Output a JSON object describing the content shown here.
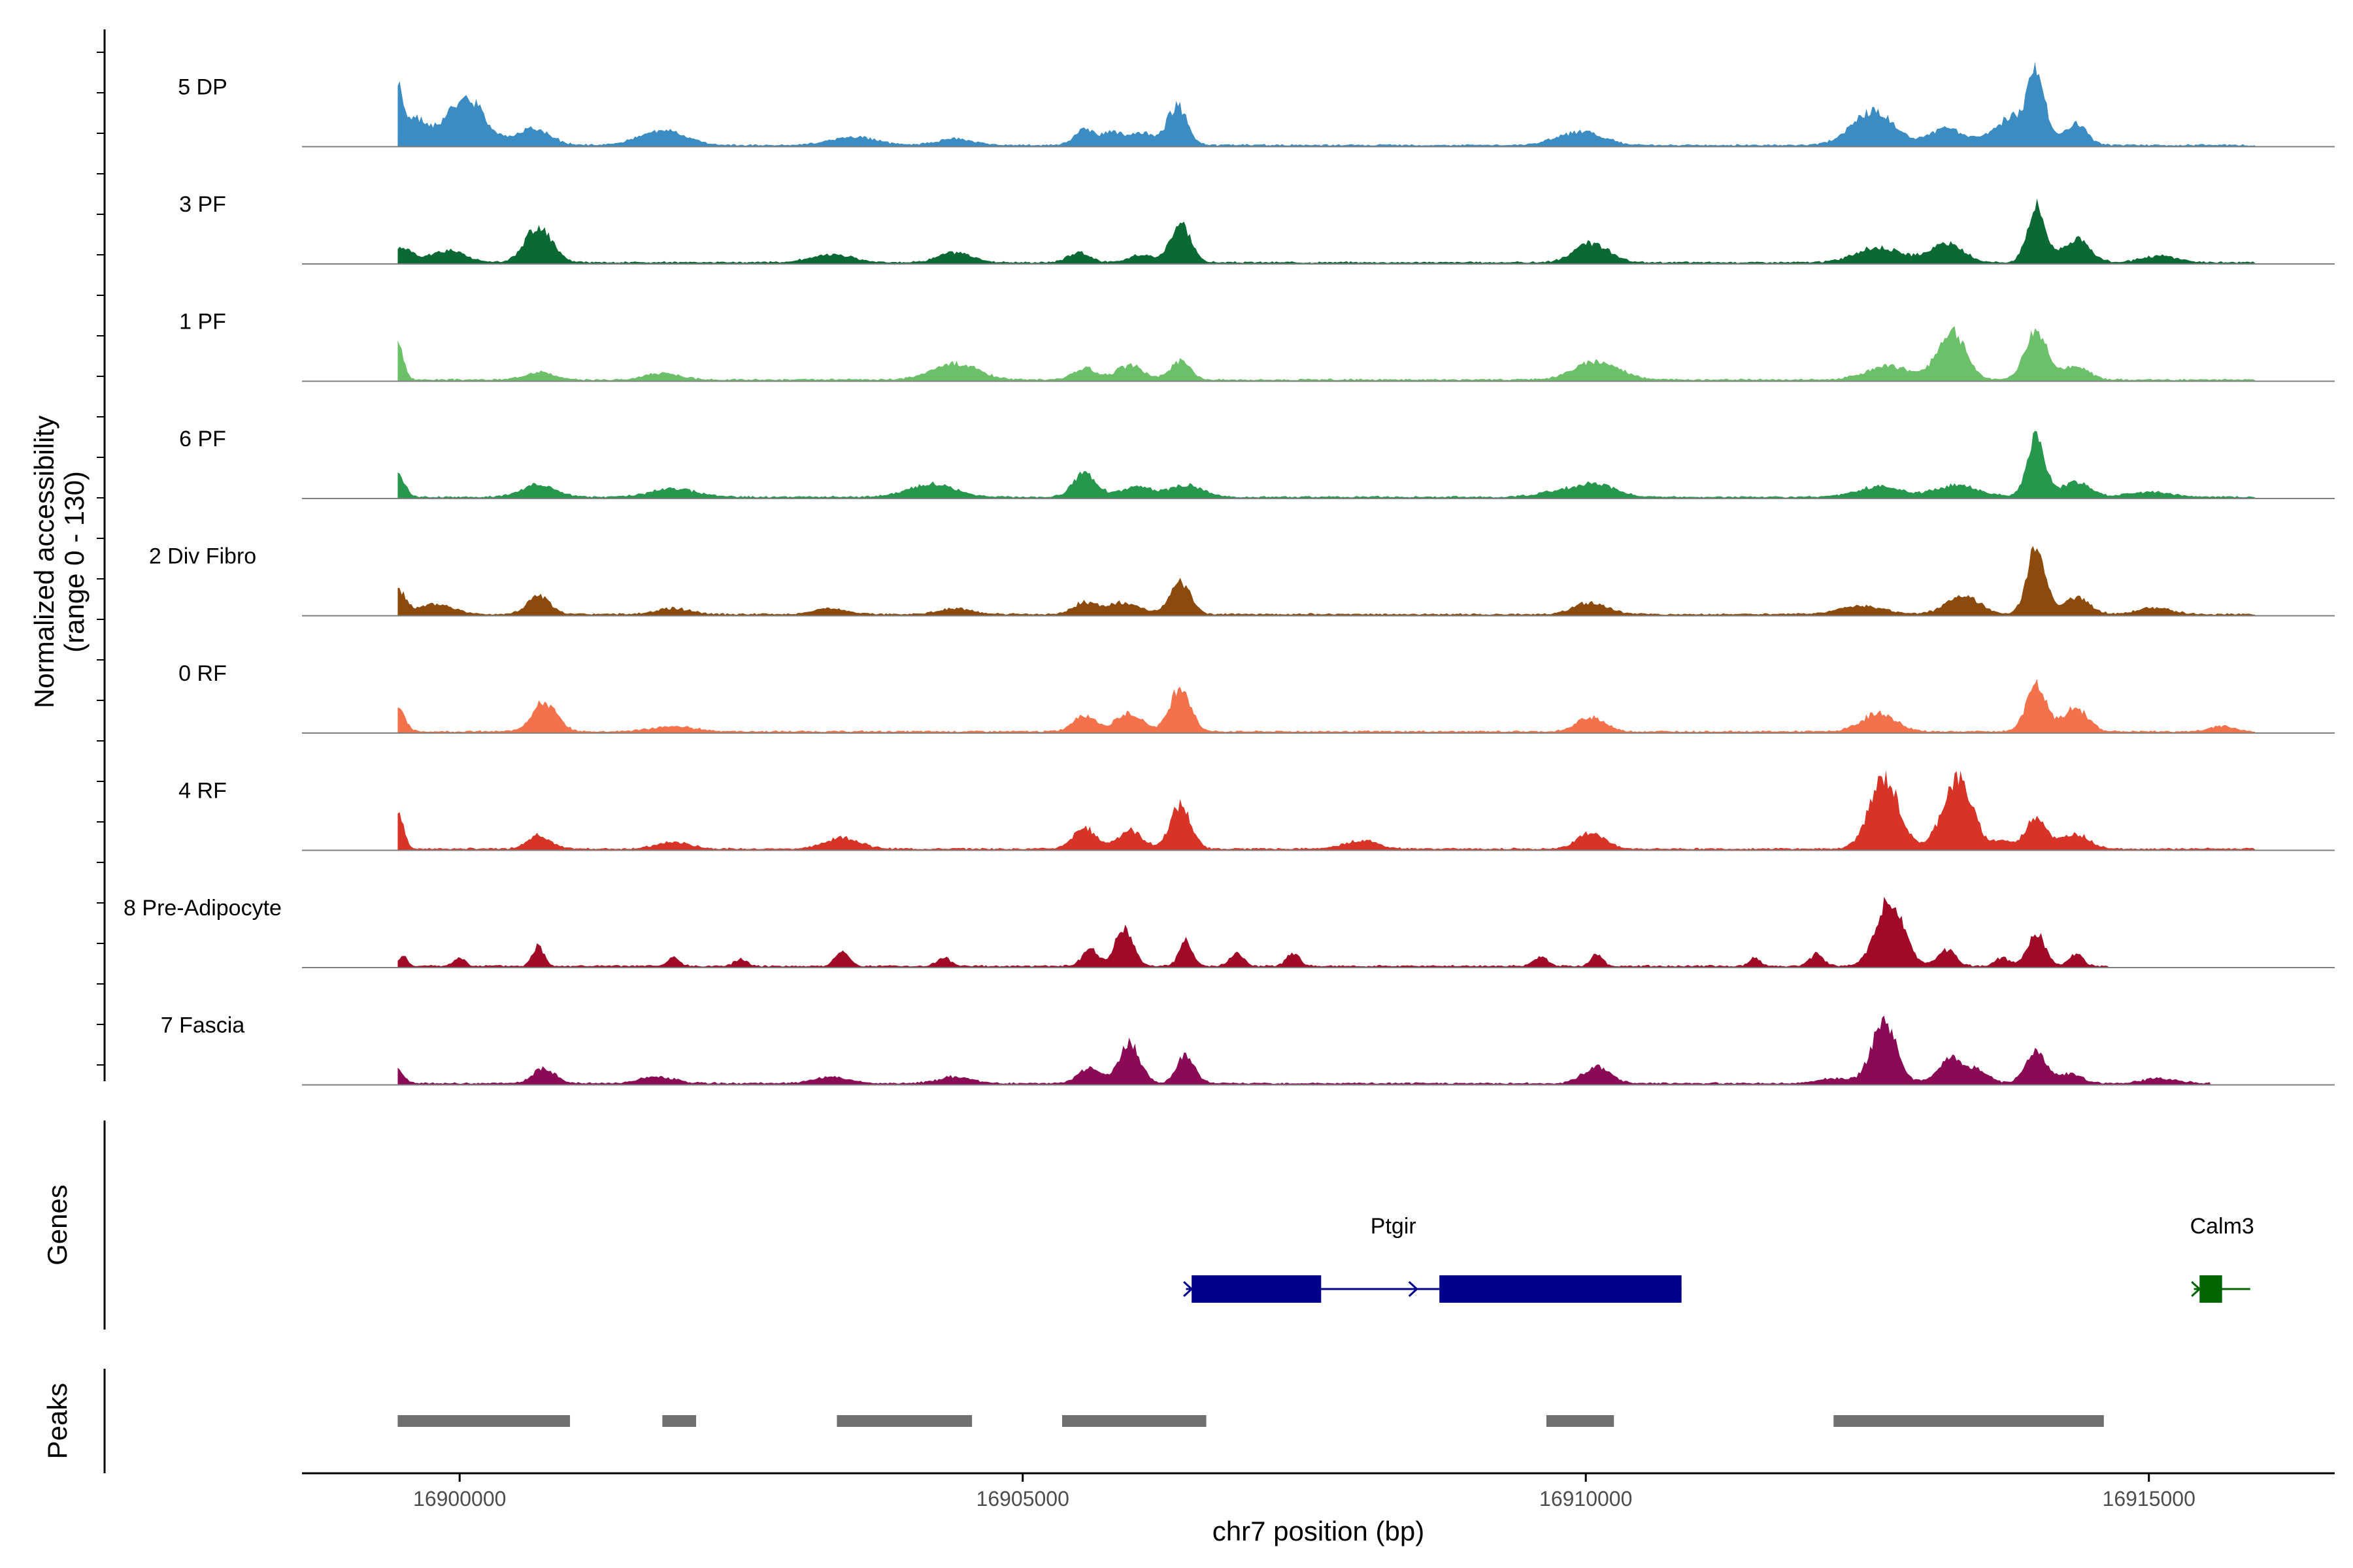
{
  "chart_data": {
    "type": "area",
    "title": "",
    "ylabel_line1": "Normalized accessibility",
    "ylabel_line2": "(range 0 - 130)",
    "y_range": [
      0,
      130
    ],
    "xlabel": "chr7 position (bp)",
    "chromosome": "chr7",
    "xlim": [
      16898600,
      16916650
    ],
    "xticks": [
      16900000,
      16905000,
      16910000,
      16915000
    ],
    "xtick_labels": [
      "16900000",
      "16905000",
      "16910000",
      "16915000"
    ],
    "track_start": 16899450,
    "track_end": 16915950,
    "tracks": [
      {
        "name": "5 DP",
        "color": "#3a8cc3",
        "end": 16915950,
        "peaks": [
          [
            16899450,
            50,
            30
          ],
          [
            16899550,
            35,
            120
          ],
          [
            16900100,
            45,
            150
          ],
          [
            16899900,
            20,
            150
          ],
          [
            16900650,
            20,
            150
          ],
          [
            16901800,
            18,
            200
          ],
          [
            16903500,
            10,
            200
          ],
          [
            16904400,
            8,
            150
          ],
          [
            16905550,
            18,
            90
          ],
          [
            16905800,
            16,
            90
          ],
          [
            16906050,
            16,
            90
          ],
          [
            16906370,
            47,
            90
          ],
          [
            16909950,
            16,
            200
          ],
          [
            16912550,
            40,
            190
          ],
          [
            16913200,
            20,
            150
          ],
          [
            16913700,
            20,
            150
          ],
          [
            16914000,
            85,
            80
          ],
          [
            16914350,
            25,
            100
          ],
          [
            16913800,
            15,
            90
          ]
        ]
      },
      {
        "name": "3 PF",
        "color": "#0b6a34",
        "end": 16915950,
        "peaks": [
          [
            16899450,
            18,
            120
          ],
          [
            16899900,
            15,
            150
          ],
          [
            16900700,
            42,
            120
          ],
          [
            16903300,
            10,
            180
          ],
          [
            16904400,
            12,
            150
          ],
          [
            16905500,
            12,
            100
          ],
          [
            16906050,
            10,
            100
          ],
          [
            16906400,
            48,
            90
          ],
          [
            16910050,
            23,
            150
          ],
          [
            16912600,
            18,
            200
          ],
          [
            16913200,
            22,
            150
          ],
          [
            16914000,
            68,
            80
          ],
          [
            16914350,
            28,
            120
          ],
          [
            16915100,
            8,
            150
          ]
        ]
      },
      {
        "name": "1 PF",
        "color": "#6cc069",
        "end": 16915950,
        "peaks": [
          [
            16899450,
            42,
            50
          ],
          [
            16900700,
            10,
            120
          ],
          [
            16901800,
            8,
            150
          ],
          [
            16904400,
            20,
            200
          ],
          [
            16905550,
            14,
            100
          ],
          [
            16905950,
            17,
            120
          ],
          [
            16906400,
            22,
            90
          ],
          [
            16910100,
            22,
            200
          ],
          [
            16912700,
            16,
            200
          ],
          [
            16913250,
            60,
            120
          ],
          [
            16914000,
            60,
            100
          ],
          [
            16914350,
            15,
            120
          ]
        ]
      },
      {
        "name": "6 PF",
        "color": "#27974e",
        "end": 16915950,
        "peaks": [
          [
            16899450,
            28,
            60
          ],
          [
            16900700,
            15,
            150
          ],
          [
            16901900,
            10,
            200
          ],
          [
            16904200,
            16,
            200
          ],
          [
            16905550,
            30,
            100
          ],
          [
            16906000,
            12,
            150
          ],
          [
            16906450,
            14,
            150
          ],
          [
            16909850,
            10,
            200
          ],
          [
            16910150,
            12,
            150
          ],
          [
            16912600,
            12,
            200
          ],
          [
            16913300,
            14,
            200
          ],
          [
            16914000,
            70,
            80
          ],
          [
            16914350,
            18,
            120
          ],
          [
            16915000,
            6,
            200
          ]
        ]
      },
      {
        "name": "2 Div Fibro",
        "color": "#8c4b0c",
        "end": 16915950,
        "peaks": [
          [
            16899450,
            30,
            70
          ],
          [
            16899800,
            12,
            150
          ],
          [
            16900700,
            22,
            100
          ],
          [
            16901900,
            7,
            150
          ],
          [
            16903300,
            7,
            150
          ],
          [
            16904400,
            7,
            150
          ],
          [
            16905550,
            14,
            100
          ],
          [
            16905900,
            14,
            150
          ],
          [
            16906400,
            38,
            90
          ],
          [
            16910050,
            14,
            150
          ],
          [
            16912450,
            10,
            200
          ],
          [
            16913350,
            22,
            150
          ],
          [
            16914000,
            80,
            80
          ],
          [
            16914350,
            20,
            120
          ],
          [
            16915050,
            8,
            150
          ]
        ]
      },
      {
        "name": "0 RF",
        "color": "#f3724b",
        "end": 16915950,
        "peaks": [
          [
            16899450,
            30,
            60
          ],
          [
            16900750,
            35,
            110
          ],
          [
            16901900,
            6,
            200
          ],
          [
            16905550,
            20,
            100
          ],
          [
            16905950,
            22,
            120
          ],
          [
            16906400,
            55,
            90
          ],
          [
            16910050,
            18,
            120
          ],
          [
            16912600,
            22,
            150
          ],
          [
            16914000,
            55,
            90
          ],
          [
            16914350,
            28,
            110
          ],
          [
            16915650,
            7,
            100
          ]
        ]
      },
      {
        "name": "4 RF",
        "color": "#d83327",
        "end": 16915950,
        "peaks": [
          [
            16899450,
            48,
            50
          ],
          [
            16900700,
            17,
            100
          ],
          [
            16901900,
            8,
            150
          ],
          [
            16903400,
            14,
            150
          ],
          [
            16905550,
            25,
            100
          ],
          [
            16905950,
            22,
            110
          ],
          [
            16906400,
            53,
            90
          ],
          [
            16908000,
            10,
            150
          ],
          [
            16910050,
            20,
            120
          ],
          [
            16912650,
            85,
            130
          ],
          [
            16913300,
            85,
            130
          ],
          [
            16914000,
            40,
            90
          ],
          [
            16914350,
            18,
            120
          ],
          [
            16913700,
            10,
            80
          ]
        ]
      },
      {
        "name": "8 Pre-Adipocyte",
        "color": "#a10a27",
        "end": 16914650,
        "peaks": [
          [
            16899500,
            12,
            40
          ],
          [
            16900000,
            10,
            50
          ],
          [
            16900700,
            25,
            50
          ],
          [
            16901900,
            10,
            50
          ],
          [
            16902500,
            8,
            60
          ],
          [
            16903400,
            18,
            60
          ],
          [
            16904300,
            10,
            60
          ],
          [
            16905600,
            20,
            70
          ],
          [
            16905900,
            45,
            80
          ],
          [
            16906450,
            30,
            60
          ],
          [
            16906900,
            15,
            60
          ],
          [
            16907400,
            15,
            60
          ],
          [
            16909600,
            12,
            60
          ],
          [
            16910100,
            15,
            50
          ],
          [
            16911500,
            10,
            50
          ],
          [
            16912050,
            15,
            60
          ],
          [
            16912700,
            80,
            120
          ],
          [
            16913200,
            20,
            80
          ],
          [
            16913700,
            10,
            60
          ],
          [
            16914000,
            40,
            80
          ],
          [
            16914350,
            15,
            60
          ]
        ]
      },
      {
        "name": "7 Fascia",
        "color": "#8a0a55",
        "end": 16915550,
        "peaks": [
          [
            16899450,
            18,
            50
          ],
          [
            16900750,
            18,
            100
          ],
          [
            16901750,
            8,
            150
          ],
          [
            16903300,
            8,
            150
          ],
          [
            16904400,
            8,
            150
          ],
          [
            16905600,
            20,
            100
          ],
          [
            16905950,
            50,
            90
          ],
          [
            16906450,
            35,
            80
          ],
          [
            16910100,
            20,
            120
          ],
          [
            16912200,
            6,
            150
          ],
          [
            16912650,
            75,
            110
          ],
          [
            16913250,
            30,
            120
          ],
          [
            16913500,
            12,
            100
          ],
          [
            16914000,
            40,
            90
          ],
          [
            16914300,
            12,
            100
          ],
          [
            16915100,
            6,
            150
          ]
        ]
      }
    ],
    "genes": [
      {
        "name": "Ptgir",
        "strand": "+",
        "color": "#00008b",
        "start": 16906450,
        "end": 16910850,
        "exons": [
          [
            16906500,
            16907650
          ],
          [
            16908700,
            16910850
          ]
        ],
        "arrows_at": [
          16906500,
          16908500
        ]
      },
      {
        "name": "Calm3",
        "strand": "+",
        "color": "#006400",
        "start": 16915400,
        "end": 16915900,
        "exons": [
          [
            16915450,
            16915650
          ]
        ],
        "arrows_at": [
          16915450
        ]
      }
    ],
    "peak_regions": [
      [
        16899450,
        16900980
      ],
      [
        16901800,
        16902100
      ],
      [
        16903350,
        16904550
      ],
      [
        16905350,
        16906630
      ],
      [
        16909650,
        16910250
      ],
      [
        16912200,
        16914600
      ]
    ],
    "side_labels": {
      "genes": "Genes",
      "peaks": "Peaks"
    },
    "colors": {
      "peak_bar": "#707070",
      "baseline": "#7f7f7f",
      "axis": "#000000"
    }
  }
}
